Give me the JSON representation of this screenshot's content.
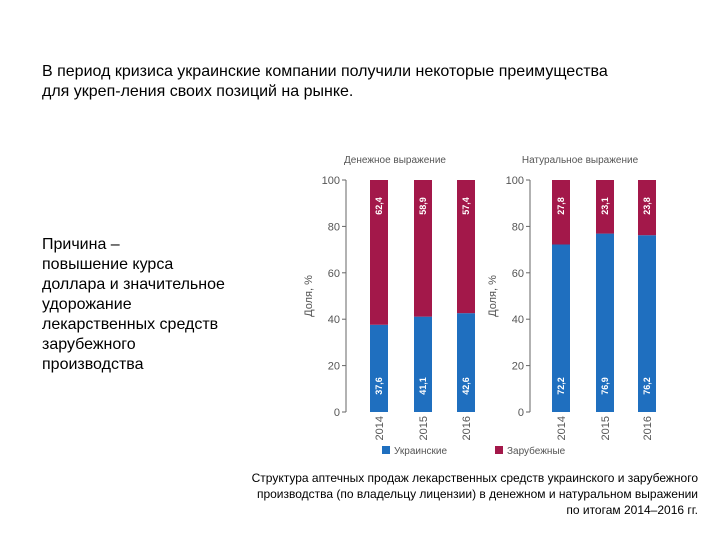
{
  "headline": {
    "line1": "В период кризиса украинские компании получили некоторые преимущества",
    "line2": "для укреп-ления своих позиций на рынке."
  },
  "reason": {
    "lines": [
      "Причина –",
      "повышение курса",
      "доллара и значительное",
      "удорожание",
      "лекарственных средств",
      "зарубежного",
      "производства"
    ]
  },
  "caption": {
    "line1": "Структура аптечных продаж лекарственных средств украинского и зарубежного",
    "line2": "производства (по владельцу лицензии) в денежном и натуральном выражении",
    "line3": "по итогам 2014–2016 гг."
  },
  "colors": {
    "ukrainian": "#1f6fbf",
    "foreign": "#a3184a",
    "axis": "#666666",
    "text": "#555555"
  },
  "chart_data": [
    {
      "type": "bar",
      "stacked": true,
      "title": "Денежное выражение",
      "ylabel": "Доля, %",
      "ylim": [
        0,
        100
      ],
      "yticks": [
        0,
        20,
        40,
        60,
        80,
        100
      ],
      "categories": [
        "2014",
        "2015",
        "2016"
      ],
      "series": [
        {
          "name": "Украинские",
          "values": [
            37.6,
            41.1,
            42.6
          ],
          "labels": [
            "37,6",
            "41,1",
            "42,6"
          ]
        },
        {
          "name": "Зарубежные",
          "values": [
            62.4,
            58.9,
            57.4
          ],
          "labels": [
            "62,4",
            "58,9",
            "57,4"
          ]
        }
      ]
    },
    {
      "type": "bar",
      "stacked": true,
      "title": "Натуральное выражение",
      "ylabel": "Доля, %",
      "ylim": [
        0,
        100
      ],
      "yticks": [
        0,
        20,
        40,
        60,
        80,
        100
      ],
      "categories": [
        "2014",
        "2015",
        "2016"
      ],
      "series": [
        {
          "name": "Украинские",
          "values": [
            72.2,
            76.9,
            76.2
          ],
          "labels": [
            "72,2",
            "76,9",
            "76,2"
          ]
        },
        {
          "name": "Зарубежные",
          "values": [
            27.8,
            23.1,
            23.8
          ],
          "labels": [
            "27,8",
            "23,1",
            "23,8"
          ]
        }
      ]
    }
  ],
  "legend": {
    "position": "bottom",
    "items": [
      {
        "label": "Украинские",
        "series": 0
      },
      {
        "label": "Зарубежные",
        "series": 1
      }
    ]
  }
}
